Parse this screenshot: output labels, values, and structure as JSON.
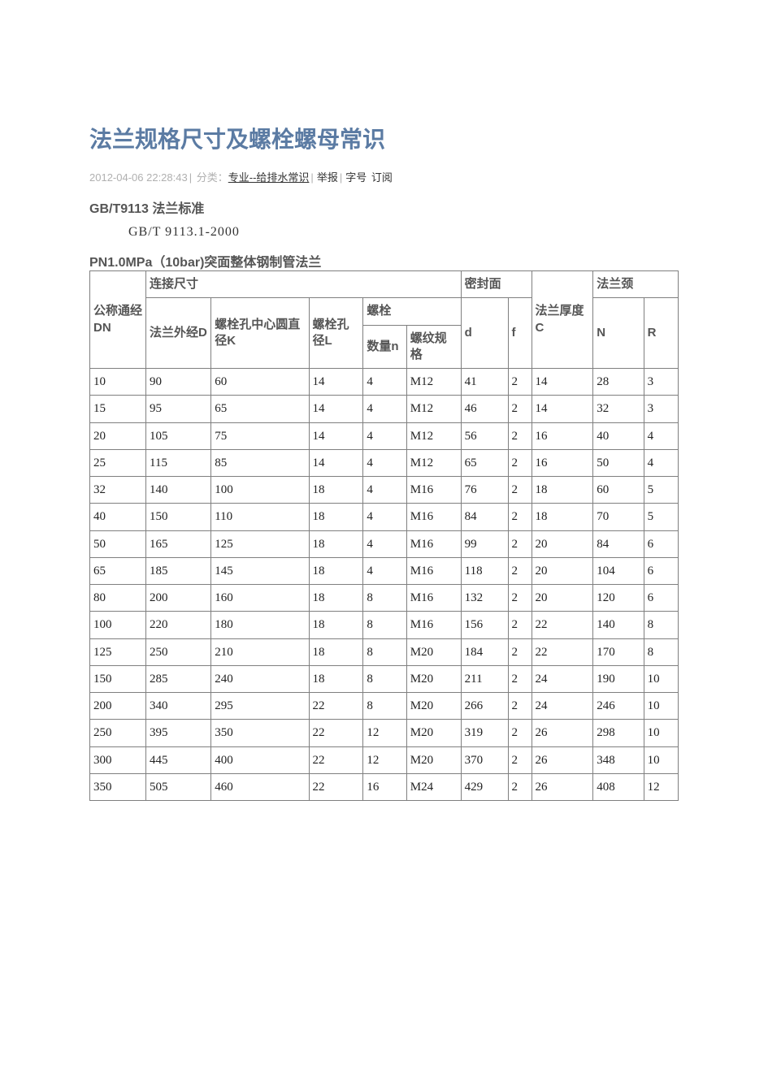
{
  "title": "法兰规格尺寸及螺栓螺母常识",
  "meta": {
    "timestamp": "2012-04-06 22:28:43",
    "sep": "|",
    "category_label": "分类：",
    "category": "专业--给排水常识",
    "action_report": "举报",
    "action_font": "字号",
    "action_sub": "订阅"
  },
  "h2": "GB/T9113 法兰标准",
  "standard_line": "GB/T 9113.1-2000",
  "h3": "PN1.0MPa（10bar)突面整体钢制管法兰",
  "table": {
    "headers": {
      "dn": "公称通经DN",
      "conn": "连接尺寸",
      "seal": "密封面",
      "thickC": "法兰厚度C",
      "neck": "法兰颈",
      "D": "法兰外经D",
      "K": "螺栓孔中心圆直径K",
      "L": "螺栓孔径L",
      "bolt": "螺栓",
      "n": "数量n",
      "thread": "螺纹规格",
      "d": "d",
      "f": "f",
      "N": "N",
      "R": "R"
    },
    "rows": [
      [
        "10",
        "90",
        "60",
        "14",
        "4",
        "M12",
        "41",
        "2",
        "14",
        "28",
        "3"
      ],
      [
        "15",
        "95",
        "65",
        "14",
        "4",
        "M12",
        "46",
        "2",
        "14",
        "32",
        "3"
      ],
      [
        "20",
        "105",
        "75",
        "14",
        "4",
        "M12",
        "56",
        "2",
        "16",
        "40",
        "4"
      ],
      [
        "25",
        "115",
        "85",
        "14",
        "4",
        "M12",
        "65",
        "2",
        "16",
        "50",
        "4"
      ],
      [
        "32",
        "140",
        "100",
        "18",
        "4",
        "M16",
        "76",
        "2",
        "18",
        "60",
        "5"
      ],
      [
        "40",
        "150",
        "110",
        "18",
        "4",
        "M16",
        "84",
        "2",
        "18",
        "70",
        "5"
      ],
      [
        "50",
        "165",
        "125",
        "18",
        "4",
        "M16",
        "99",
        "2",
        "20",
        "84",
        "6"
      ],
      [
        "65",
        "185",
        "145",
        "18",
        "4",
        "M16",
        "118",
        "2",
        "20",
        "104",
        "6"
      ],
      [
        "80",
        "200",
        "160",
        "18",
        "8",
        "M16",
        "132",
        "2",
        "20",
        "120",
        "6"
      ],
      [
        "100",
        "220",
        "180",
        "18",
        "8",
        "M16",
        "156",
        "2",
        "22",
        "140",
        "8"
      ],
      [
        "125",
        "250",
        "210",
        "18",
        "8",
        "M20",
        "184",
        "2",
        "22",
        "170",
        "8"
      ],
      [
        "150",
        "285",
        "240",
        "18",
        "8",
        "M20",
        "211",
        "2",
        "24",
        "190",
        "10"
      ],
      [
        "200",
        "340",
        "295",
        "22",
        "8",
        "M20",
        "266",
        "2",
        "24",
        "246",
        "10"
      ],
      [
        "250",
        "395",
        "350",
        "22",
        "12",
        "M20",
        "319",
        "2",
        "26",
        "298",
        "10"
      ],
      [
        "300",
        "445",
        "400",
        "22",
        "12",
        "M20",
        "370",
        "2",
        "26",
        "348",
        "10"
      ],
      [
        "350",
        "505",
        "460",
        "22",
        "16",
        "M24",
        "429",
        "2",
        "26",
        "408",
        "12"
      ]
    ]
  }
}
